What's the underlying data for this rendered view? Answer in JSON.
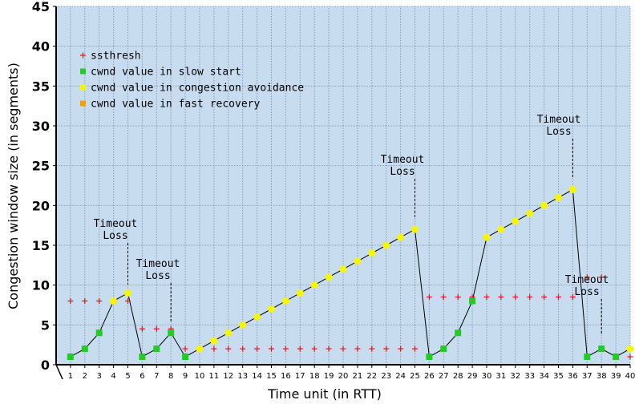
{
  "chart_data": {
    "type": "scatter",
    "xlabel": "Time unit (in RTT)",
    "ylabel": "Congestion window size (in segments)",
    "xlim": [
      0,
      40
    ],
    "ylim": [
      0,
      45
    ],
    "x_ticks": [
      1,
      2,
      3,
      4,
      5,
      6,
      7,
      8,
      9,
      10,
      11,
      12,
      13,
      14,
      15,
      16,
      17,
      18,
      19,
      20,
      21,
      22,
      23,
      24,
      25,
      26,
      27,
      28,
      29,
      30,
      31,
      32,
      33,
      34,
      35,
      36,
      37,
      38,
      39,
      40
    ],
    "y_ticks": [
      0,
      5,
      10,
      15,
      20,
      25,
      30,
      35,
      40,
      45
    ],
    "grid": true,
    "legend_position": "top-left",
    "colors": {
      "plot_background": "#c8dcf0",
      "grid": "#8aa2bd",
      "ssthresh": "#e02020",
      "slow_start": "#22cc22",
      "congestion_avoidance": "#f5f50a",
      "fast_recovery": "#f5a000",
      "line": "#000000"
    },
    "legend": [
      {
        "key": "ssthresh",
        "label": "ssthresh",
        "marker": "plus"
      },
      {
        "key": "slow_start",
        "label": "cwnd value in slow start",
        "marker": "square"
      },
      {
        "key": "congestion_avoidance",
        "label": "cwnd value in congestion avoidance",
        "marker": "square"
      },
      {
        "key": "fast_recovery",
        "label": "cwnd value in fast recovery",
        "marker": "square"
      }
    ],
    "cwnd": [
      {
        "x": 1,
        "y": 1,
        "phase": "slow_start"
      },
      {
        "x": 2,
        "y": 2,
        "phase": "slow_start"
      },
      {
        "x": 3,
        "y": 4,
        "phase": "slow_start"
      },
      {
        "x": 4,
        "y": 8,
        "phase": "congestion_avoidance"
      },
      {
        "x": 5,
        "y": 9,
        "phase": "congestion_avoidance"
      },
      {
        "x": 6,
        "y": 1,
        "phase": "slow_start"
      },
      {
        "x": 7,
        "y": 2,
        "phase": "slow_start"
      },
      {
        "x": 8,
        "y": 4,
        "phase": "slow_start"
      },
      {
        "x": 9,
        "y": 1,
        "phase": "slow_start"
      },
      {
        "x": 10,
        "y": 2,
        "phase": "congestion_avoidance"
      },
      {
        "x": 11,
        "y": 3,
        "phase": "congestion_avoidance"
      },
      {
        "x": 12,
        "y": 4,
        "phase": "congestion_avoidance"
      },
      {
        "x": 13,
        "y": 5,
        "phase": "congestion_avoidance"
      },
      {
        "x": 14,
        "y": 6,
        "phase": "congestion_avoidance"
      },
      {
        "x": 15,
        "y": 7,
        "phase": "congestion_avoidance"
      },
      {
        "x": 16,
        "y": 8,
        "phase": "congestion_avoidance"
      },
      {
        "x": 17,
        "y": 9,
        "phase": "congestion_avoidance"
      },
      {
        "x": 18,
        "y": 10,
        "phase": "congestion_avoidance"
      },
      {
        "x": 19,
        "y": 11,
        "phase": "congestion_avoidance"
      },
      {
        "x": 20,
        "y": 12,
        "phase": "congestion_avoidance"
      },
      {
        "x": 21,
        "y": 13,
        "phase": "congestion_avoidance"
      },
      {
        "x": 22,
        "y": 14,
        "phase": "congestion_avoidance"
      },
      {
        "x": 23,
        "y": 15,
        "phase": "congestion_avoidance"
      },
      {
        "x": 24,
        "y": 16,
        "phase": "congestion_avoidance"
      },
      {
        "x": 25,
        "y": 17,
        "phase": "congestion_avoidance"
      },
      {
        "x": 26,
        "y": 1,
        "phase": "slow_start"
      },
      {
        "x": 27,
        "y": 2,
        "phase": "slow_start"
      },
      {
        "x": 28,
        "y": 4,
        "phase": "slow_start"
      },
      {
        "x": 29,
        "y": 8,
        "phase": "slow_start"
      },
      {
        "x": 30,
        "y": 16,
        "phase": "congestion_avoidance"
      },
      {
        "x": 31,
        "y": 17,
        "phase": "congestion_avoidance"
      },
      {
        "x": 32,
        "y": 18,
        "phase": "congestion_avoidance"
      },
      {
        "x": 33,
        "y": 19,
        "phase": "congestion_avoidance"
      },
      {
        "x": 34,
        "y": 20,
        "phase": "congestion_avoidance"
      },
      {
        "x": 35,
        "y": 21,
        "phase": "congestion_avoidance"
      },
      {
        "x": 36,
        "y": 22,
        "phase": "congestion_avoidance"
      },
      {
        "x": 37,
        "y": 1,
        "phase": "slow_start"
      },
      {
        "x": 38,
        "y": 2,
        "phase": "slow_start"
      },
      {
        "x": 39,
        "y": 1,
        "phase": "slow_start"
      },
      {
        "x": 40,
        "y": 2,
        "phase": "congestion_avoidance"
      }
    ],
    "ssthresh": [
      {
        "x": 1,
        "y": 8
      },
      {
        "x": 2,
        "y": 8
      },
      {
        "x": 3,
        "y": 8
      },
      {
        "x": 4,
        "y": 8
      },
      {
        "x": 5,
        "y": 8
      },
      {
        "x": 6,
        "y": 4.5
      },
      {
        "x": 7,
        "y": 4.5
      },
      {
        "x": 8,
        "y": 4.5
      },
      {
        "x": 9,
        "y": 2
      },
      {
        "x": 10,
        "y": 2
      },
      {
        "x": 11,
        "y": 2
      },
      {
        "x": 12,
        "y": 2
      },
      {
        "x": 13,
        "y": 2
      },
      {
        "x": 14,
        "y": 2
      },
      {
        "x": 15,
        "y": 2
      },
      {
        "x": 16,
        "y": 2
      },
      {
        "x": 17,
        "y": 2
      },
      {
        "x": 18,
        "y": 2
      },
      {
        "x": 19,
        "y": 2
      },
      {
        "x": 20,
        "y": 2
      },
      {
        "x": 21,
        "y": 2
      },
      {
        "x": 22,
        "y": 2
      },
      {
        "x": 23,
        "y": 2
      },
      {
        "x": 24,
        "y": 2
      },
      {
        "x": 25,
        "y": 2
      },
      {
        "x": 26,
        "y": 8.5
      },
      {
        "x": 27,
        "y": 8.5
      },
      {
        "x": 28,
        "y": 8.5
      },
      {
        "x": 29,
        "y": 8.5
      },
      {
        "x": 30,
        "y": 8.5
      },
      {
        "x": 31,
        "y": 8.5
      },
      {
        "x": 32,
        "y": 8.5
      },
      {
        "x": 33,
        "y": 8.5
      },
      {
        "x": 34,
        "y": 8.5
      },
      {
        "x": 35,
        "y": 8.5
      },
      {
        "x": 36,
        "y": 8.5
      },
      {
        "x": 37,
        "y": 11
      },
      {
        "x": 38,
        "y": 11
      },
      {
        "x": 39,
        "y": 1
      },
      {
        "x": 40,
        "y": 1
      }
    ],
    "annotations": [
      {
        "lines": [
          "Timeout",
          "Loss"
        ],
        "x": 5,
        "y": 9
      },
      {
        "lines": [
          "Timeout",
          "Loss"
        ],
        "x": 8,
        "y": 4
      },
      {
        "lines": [
          "Timeout",
          "Loss"
        ],
        "x": 25,
        "y": 17
      },
      {
        "lines": [
          "Timeout",
          "Loss"
        ],
        "x": 36,
        "y": 22
      },
      {
        "lines": [
          "Timeout",
          "Loss"
        ],
        "x": 38,
        "y": 2
      }
    ]
  }
}
